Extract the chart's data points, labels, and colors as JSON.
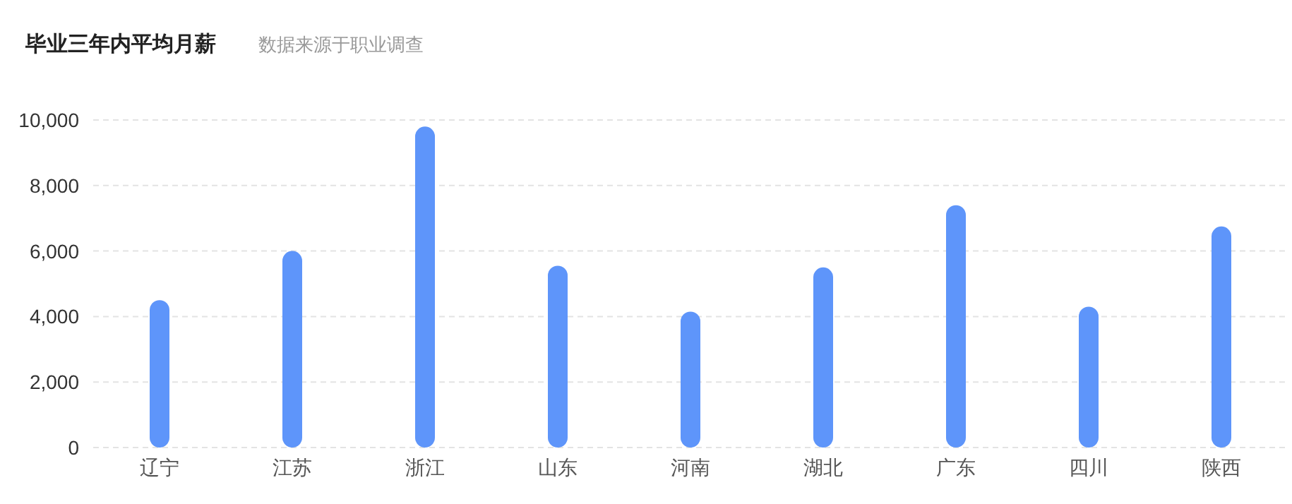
{
  "chart_data": {
    "type": "bar",
    "title": "毕业三年内平均月薪",
    "subtitle": "数据来源于职业调查",
    "categories": [
      "辽宁",
      "江苏",
      "浙江",
      "山东",
      "河南",
      "湖北",
      "广东",
      "四川",
      "陕西"
    ],
    "values": [
      4500,
      6000,
      9800,
      5550,
      4150,
      5500,
      7400,
      4300,
      6750
    ],
    "color": "#5e95fa",
    "ylim": [
      0,
      10000
    ],
    "yticks": [
      {
        "value": 0,
        "label": "0"
      },
      {
        "value": 2000,
        "label": "2,000"
      },
      {
        "value": 4000,
        "label": "4,000"
      },
      {
        "value": 6000,
        "label": "6,000"
      },
      {
        "value": 8000,
        "label": "8,000"
      },
      {
        "value": 10000,
        "label": "10,000"
      }
    ],
    "grid": "y"
  }
}
